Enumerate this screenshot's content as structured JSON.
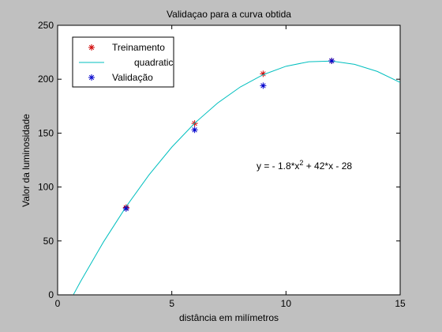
{
  "chart_data": {
    "type": "scatter",
    "title": "Validaçao para a curva obtida",
    "xlabel": "distância em milímetros",
    "ylabel": "Valor da luminosidade",
    "xlim": [
      0,
      15
    ],
    "xticks": [
      0,
      5,
      10,
      15
    ],
    "ylim": [
      0,
      250
    ],
    "yticks": [
      0,
      50,
      100,
      150,
      200,
      250
    ],
    "grid": false,
    "legend": "upper left",
    "annotation": [
      "y = - 1.8*x",
      "2",
      " + 42*x - 28"
    ],
    "series": [
      {
        "name": "Treinamento",
        "type": "scatter",
        "color": "#d00000",
        "x": [
          3,
          6,
          9,
          12
        ],
        "values": [
          81,
          159,
          205,
          217
        ]
      },
      {
        "name": "quadratic",
        "type": "line",
        "color": "#00bfbf",
        "x": [
          0.7,
          1,
          2,
          3,
          4,
          5,
          6,
          7,
          8,
          9,
          10,
          11,
          12,
          13,
          14,
          15
        ],
        "values": [
          0.5,
          12.2,
          48.8,
          81.8,
          111.2,
          137,
          159.2,
          177.8,
          192.8,
          204.2,
          212,
          216.2,
          216.8,
          213.8,
          207.2,
          197
        ]
      },
      {
        "name": "Validação",
        "type": "scatter",
        "color": "#0000cc",
        "x": [
          3,
          6,
          9,
          12
        ],
        "values": [
          80,
          153,
          194,
          217
        ]
      }
    ]
  }
}
